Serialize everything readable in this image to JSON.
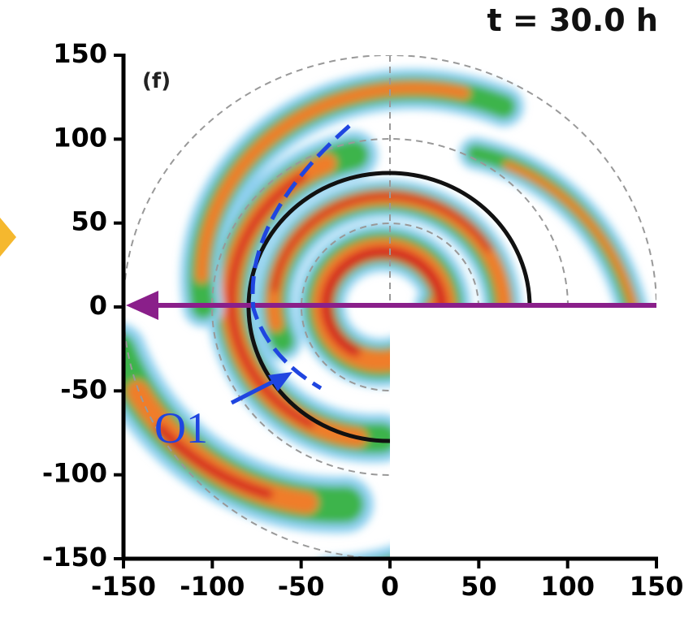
{
  "chart_data": {
    "type": "field",
    "title": "t = 30.0 h",
    "panel_label": "(f)",
    "annotation": "O1",
    "xlim": [
      -150,
      150
    ],
    "ylim": [
      -150,
      150
    ],
    "xticks": [
      -150,
      -100,
      -50,
      0,
      50,
      100,
      150
    ],
    "yticks": [
      -150,
      -100,
      -50,
      0,
      50,
      100,
      150
    ]
  }
}
